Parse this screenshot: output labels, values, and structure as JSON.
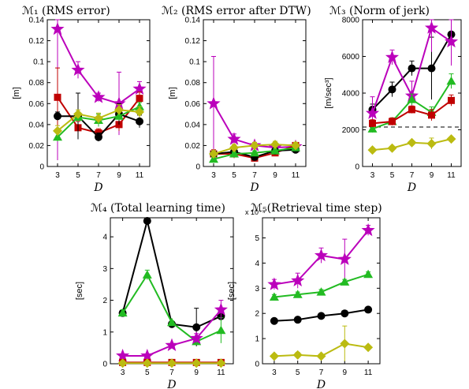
{
  "series_styles": [
    {
      "key": "black",
      "color": "#000000",
      "marker": "circle"
    },
    {
      "key": "red",
      "color": "#c00000",
      "marker": "square"
    },
    {
      "key": "green",
      "color": "#22bb22",
      "marker": "triangle"
    },
    {
      "key": "magenta",
      "color": "#bb00bb",
      "marker": "star"
    },
    {
      "key": "yellow",
      "color": "#bbbb11",
      "marker": "diamond"
    }
  ],
  "chart_data": [
    {
      "type": "line",
      "title": "ℳ₁ (RMS error)",
      "xlabel": "D",
      "ylabel": "[m]",
      "x": [
        3,
        5,
        7,
        9,
        11
      ],
      "xlim": [
        2,
        12
      ],
      "ylim": [
        0,
        0.14
      ],
      "yticks": [
        0,
        0.02,
        0.04,
        0.06,
        0.08,
        0.1,
        0.12,
        0.14
      ],
      "yticklabels": [
        "0",
        "0.02",
        "0.04",
        "0.06",
        "0.08",
        "0.1",
        "0.12",
        "0.14"
      ],
      "series": [
        {
          "style": "magenta",
          "values": [
            0.131,
            0.092,
            0.066,
            0.06,
            0.074
          ],
          "errors": [
            0.125,
            0.008,
            0.004,
            0.03,
            0.007
          ]
        },
        {
          "style": "red",
          "values": [
            0.066,
            0.037,
            0.032,
            0.04,
            0.065
          ],
          "errors": [
            0.028,
            0.006,
            0.004,
            0.006,
            0.006
          ]
        },
        {
          "style": "black",
          "values": [
            0.048,
            0.048,
            0.028,
            0.05,
            0.043
          ],
          "errors": [
            0.004,
            0.022,
            0.004,
            0.01,
            0.006
          ]
        },
        {
          "style": "green",
          "values": [
            0.028,
            0.047,
            0.044,
            0.048,
            0.057
          ],
          "errors": [
            0.004,
            0.004,
            0.006,
            0.004,
            0.004
          ]
        },
        {
          "style": "yellow",
          "values": [
            0.034,
            0.05,
            0.046,
            0.054,
            0.052
          ],
          "errors": [
            0.005,
            0.004,
            0.005,
            0.005,
            0.005
          ]
        }
      ]
    },
    {
      "type": "line",
      "title": "ℳ₂ (RMS error after DTW)",
      "xlabel": "D",
      "ylabel": "[m]",
      "x": [
        3,
        5,
        7,
        9,
        11
      ],
      "xlim": [
        2,
        12
      ],
      "ylim": [
        0,
        0.14
      ],
      "yticks": [
        0,
        0.02,
        0.04,
        0.06,
        0.08,
        0.1,
        0.12,
        0.14
      ],
      "yticklabels": [
        "0",
        "0.02",
        "0.04",
        "0.06",
        "0.08",
        "0.1",
        "0.12",
        "0.14"
      ],
      "series": [
        {
          "style": "magenta",
          "values": [
            0.06,
            0.026,
            0.02,
            0.018,
            0.019
          ],
          "errors": [
            0.045,
            0.005,
            0.003,
            0.003,
            0.003
          ]
        },
        {
          "style": "red",
          "values": [
            0.012,
            0.012,
            0.008,
            0.013,
            0.02
          ],
          "errors": [
            0.004,
            0.004,
            0.002,
            0.003,
            0.003
          ]
        },
        {
          "style": "black",
          "values": [
            0.012,
            0.014,
            0.009,
            0.015,
            0.016
          ],
          "errors": [
            0.002,
            0.002,
            0.002,
            0.002,
            0.002
          ]
        },
        {
          "style": "green",
          "values": [
            0.007,
            0.012,
            0.013,
            0.015,
            0.018
          ],
          "errors": [
            0.002,
            0.002,
            0.002,
            0.002,
            0.002
          ]
        },
        {
          "style": "yellow",
          "values": [
            0.012,
            0.018,
            0.02,
            0.021,
            0.02
          ],
          "errors": [
            0.003,
            0.003,
            0.003,
            0.003,
            0.003
          ]
        }
      ]
    },
    {
      "type": "line",
      "title": "ℳ₃ (Norm of jerk)",
      "xlabel": "D",
      "ylabel": "[m/sec³]",
      "x": [
        3,
        5,
        7,
        9,
        11
      ],
      "xlim": [
        2,
        12
      ],
      "ylim": [
        0,
        8000
      ],
      "yticks": [
        0,
        2000,
        4000,
        6000,
        8000
      ],
      "yticklabels": [
        "0",
        "2000",
        "4000",
        "6000",
        "8000"
      ],
      "reference_line": 2150,
      "series": [
        {
          "style": "black",
          "values": [
            3100,
            4200,
            5350,
            5350,
            7200
          ],
          "errors": [
            300,
            400,
            400,
            1700,
            900
          ]
        },
        {
          "style": "magenta",
          "values": [
            2900,
            5950,
            3850,
            7550,
            6800
          ],
          "errors": [
            900,
            400,
            800,
            1300,
            1300
          ]
        },
        {
          "style": "green",
          "values": [
            2050,
            2450,
            3650,
            2950,
            4650
          ],
          "errors": [
            200,
            200,
            300,
            300,
            400
          ]
        },
        {
          "style": "red",
          "values": [
            2350,
            2450,
            3100,
            2800,
            3600
          ],
          "errors": [
            200,
            200,
            200,
            300,
            300
          ]
        },
        {
          "style": "yellow",
          "values": [
            900,
            1000,
            1300,
            1250,
            1500
          ],
          "errors": [
            100,
            100,
            100,
            300,
            100
          ]
        }
      ]
    },
    {
      "type": "line",
      "title": "ℳ₄ (Total learning time)",
      "xlabel": "D",
      "ylabel": "[sec]",
      "x": [
        3,
        5,
        7,
        9,
        11
      ],
      "xlim": [
        2,
        12
      ],
      "ylim": [
        0,
        4.6
      ],
      "yticks": [
        0,
        1,
        2,
        3,
        4
      ],
      "yticklabels": [
        "0",
        "1",
        "2",
        "3",
        "4"
      ],
      "series": [
        {
          "style": "black",
          "values": [
            1.6,
            4.5,
            1.25,
            1.15,
            1.5
          ],
          "errors": [
            0.05,
            0.05,
            0.05,
            0.6,
            0.1
          ]
        },
        {
          "style": "green",
          "values": [
            1.6,
            2.8,
            1.3,
            0.7,
            1.05
          ],
          "errors": [
            0.1,
            0.15,
            0.05,
            0.05,
            0.4
          ]
        },
        {
          "style": "magenta",
          "values": [
            0.25,
            0.25,
            0.58,
            0.8,
            1.7
          ],
          "errors": [
            0.02,
            0.02,
            0.03,
            0.15,
            0.3
          ]
        },
        {
          "style": "red",
          "values": [
            0.04,
            0.04,
            0.04,
            0.04,
            0.04
          ],
          "errors": [
            0,
            0,
            0,
            0,
            0
          ]
        },
        {
          "style": "yellow",
          "values": [
            0.02,
            0.02,
            0.02,
            0.02,
            0.02
          ],
          "errors": [
            0,
            0,
            0,
            0,
            0
          ]
        }
      ]
    },
    {
      "type": "line",
      "title": "ℳ₅(Retrieval time step)",
      "xlabel": "D",
      "ylabel": "[sec]",
      "multiplier": "x 10⁻⁴",
      "x": [
        3,
        5,
        7,
        9,
        11
      ],
      "xlim": [
        2,
        12
      ],
      "ylim": [
        0,
        5.8
      ],
      "yticks": [
        0,
        1,
        2,
        3,
        4,
        5
      ],
      "yticklabels": [
        "0",
        "1",
        "2",
        "3",
        "4",
        "5"
      ],
      "series": [
        {
          "style": "magenta",
          "values": [
            3.15,
            3.3,
            4.3,
            4.15,
            5.3
          ],
          "errors": [
            0.2,
            0.3,
            0.3,
            0.8,
            0.2
          ]
        },
        {
          "style": "green",
          "values": [
            2.65,
            2.75,
            2.85,
            3.25,
            3.55
          ],
          "errors": [
            0.1,
            0.1,
            0.1,
            0.1,
            0.1
          ]
        },
        {
          "style": "black",
          "values": [
            1.7,
            1.75,
            1.9,
            2.0,
            2.15
          ],
          "errors": [
            0.05,
            0.05,
            0.05,
            0.05,
            0.05
          ]
        },
        {
          "style": "yellow",
          "values": [
            0.3,
            0.35,
            0.3,
            0.8,
            0.65
          ],
          "errors": [
            0.05,
            0.1,
            0.05,
            0.7,
            0.05
          ]
        }
      ]
    }
  ]
}
